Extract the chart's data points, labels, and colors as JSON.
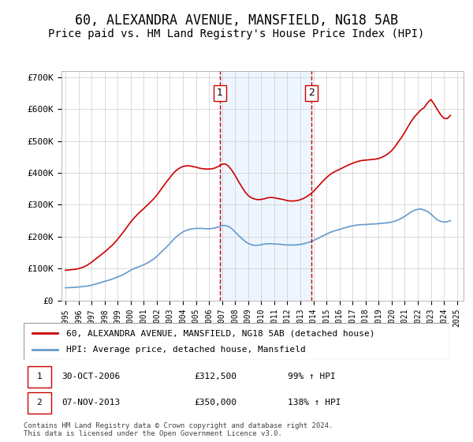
{
  "title": "60, ALEXANDRA AVENUE, MANSFIELD, NG18 5AB",
  "subtitle": "Price paid vs. HM Land Registry's House Price Index (HPI)",
  "title_fontsize": 12,
  "subtitle_fontsize": 10,
  "ylabel_ticks": [
    "£0",
    "£100K",
    "£200K",
    "£300K",
    "£400K",
    "£500K",
    "£600K",
    "£700K"
  ],
  "ytick_values": [
    0,
    100000,
    200000,
    300000,
    400000,
    500000,
    600000,
    700000
  ],
  "ylim": [
    0,
    720000
  ],
  "xlim_start": 1995.0,
  "xlim_end": 2025.5,
  "xtick_years": [
    1995,
    1996,
    1997,
    1998,
    1999,
    2000,
    2001,
    2002,
    2003,
    2004,
    2005,
    2006,
    2007,
    2008,
    2009,
    2010,
    2011,
    2012,
    2013,
    2014,
    2015,
    2016,
    2017,
    2018,
    2019,
    2020,
    2021,
    2022,
    2023,
    2024,
    2025
  ],
  "red_line_color": "#cc0000",
  "blue_line_color": "#6699cc",
  "vline_color": "#cc0000",
  "vline1_x": 2006.83,
  "vline2_x": 2013.85,
  "shade_color": "#ddeeff",
  "transaction1": {
    "label": "1",
    "date": "30-OCT-2006",
    "price": "£312,500",
    "hpi": "99% ↑ HPI"
  },
  "transaction2": {
    "label": "2",
    "date": "07-NOV-2013",
    "price": "£350,000",
    "hpi": "138% ↑ HPI"
  },
  "legend_line1": "60, ALEXANDRA AVENUE, MANSFIELD, NG18 5AB (detached house)",
  "legend_line2": "HPI: Average price, detached house, Mansfield",
  "footnote": "Contains HM Land Registry data © Crown copyright and database right 2024.\nThis data is licensed under the Open Government Licence v3.0.",
  "hpi_years": [
    1995.0,
    1995.25,
    1995.5,
    1995.75,
    1996.0,
    1996.25,
    1996.5,
    1996.75,
    1997.0,
    1997.25,
    1997.5,
    1997.75,
    1998.0,
    1998.25,
    1998.5,
    1998.75,
    1999.0,
    1999.25,
    1999.5,
    1999.75,
    2000.0,
    2000.25,
    2000.5,
    2000.75,
    2001.0,
    2001.25,
    2001.5,
    2001.75,
    2002.0,
    2002.25,
    2002.5,
    2002.75,
    2003.0,
    2003.25,
    2003.5,
    2003.75,
    2004.0,
    2004.25,
    2004.5,
    2004.75,
    2005.0,
    2005.25,
    2005.5,
    2005.75,
    2006.0,
    2006.25,
    2006.5,
    2006.75,
    2007.0,
    2007.25,
    2007.5,
    2007.75,
    2008.0,
    2008.25,
    2008.5,
    2008.75,
    2009.0,
    2009.25,
    2009.5,
    2009.75,
    2010.0,
    2010.25,
    2010.5,
    2010.75,
    2011.0,
    2011.25,
    2011.5,
    2011.75,
    2012.0,
    2012.25,
    2012.5,
    2012.75,
    2013.0,
    2013.25,
    2013.5,
    2013.75,
    2014.0,
    2014.25,
    2014.5,
    2014.75,
    2015.0,
    2015.25,
    2015.5,
    2015.75,
    2016.0,
    2016.25,
    2016.5,
    2016.75,
    2017.0,
    2017.25,
    2017.5,
    2017.75,
    2018.0,
    2018.25,
    2018.5,
    2018.75,
    2019.0,
    2019.25,
    2019.5,
    2019.75,
    2020.0,
    2020.25,
    2020.5,
    2020.75,
    2021.0,
    2021.25,
    2021.5,
    2021.75,
    2022.0,
    2022.25,
    2022.5,
    2022.75,
    2023.0,
    2023.25,
    2023.5,
    2023.75,
    2024.0,
    2024.25,
    2024.5
  ],
  "hpi_values": [
    40000,
    40500,
    41000,
    41500,
    42500,
    43500,
    44500,
    46000,
    48000,
    51000,
    54000,
    57000,
    60000,
    63000,
    66000,
    70000,
    74000,
    78000,
    83000,
    89000,
    95000,
    100000,
    104000,
    108000,
    112000,
    117000,
    123000,
    130000,
    138000,
    148000,
    158000,
    168000,
    178000,
    190000,
    200000,
    208000,
    215000,
    220000,
    223000,
    225000,
    226000,
    226000,
    226000,
    225000,
    225000,
    226000,
    228000,
    231000,
    235000,
    235000,
    232000,
    225000,
    215000,
    205000,
    195000,
    186000,
    179000,
    175000,
    173000,
    173000,
    175000,
    177000,
    178000,
    178000,
    177000,
    177000,
    176000,
    175000,
    174000,
    174000,
    174000,
    175000,
    176000,
    178000,
    181000,
    184000,
    188000,
    193000,
    198000,
    203000,
    208000,
    213000,
    217000,
    220000,
    223000,
    226000,
    229000,
    232000,
    234000,
    236000,
    237000,
    238000,
    238000,
    239000,
    240000,
    240000,
    241000,
    242000,
    243000,
    244000,
    246000,
    249000,
    253000,
    258000,
    264000,
    271000,
    278000,
    283000,
    286000,
    287000,
    283000,
    279000,
    271000,
    261000,
    253000,
    248000,
    246000,
    247000,
    250000
  ],
  "red_years": [
    1995.0,
    1995.25,
    1995.5,
    1995.75,
    1996.0,
    1996.25,
    1996.5,
    1996.75,
    1997.0,
    1997.25,
    1997.5,
    1997.75,
    1998.0,
    1998.25,
    1998.5,
    1998.75,
    1999.0,
    1999.25,
    1999.5,
    1999.75,
    2000.0,
    2000.25,
    2000.5,
    2000.75,
    2001.0,
    2001.25,
    2001.5,
    2001.75,
    2002.0,
    2002.25,
    2002.5,
    2002.75,
    2003.0,
    2003.25,
    2003.5,
    2003.75,
    2004.0,
    2004.25,
    2004.5,
    2004.75,
    2005.0,
    2005.25,
    2005.5,
    2005.75,
    2006.0,
    2006.25,
    2006.5,
    2006.75,
    2007.0,
    2007.25,
    2007.5,
    2007.75,
    2008.0,
    2008.25,
    2008.5,
    2008.75,
    2009.0,
    2009.25,
    2009.5,
    2009.75,
    2010.0,
    2010.25,
    2010.5,
    2010.75,
    2011.0,
    2011.25,
    2011.5,
    2011.75,
    2012.0,
    2012.25,
    2012.5,
    2012.75,
    2013.0,
    2013.25,
    2013.5,
    2013.75,
    2014.0,
    2014.25,
    2014.5,
    2014.75,
    2015.0,
    2015.25,
    2015.5,
    2015.75,
    2016.0,
    2016.25,
    2016.5,
    2016.75,
    2017.0,
    2017.25,
    2017.5,
    2017.75,
    2018.0,
    2018.25,
    2018.5,
    2018.75,
    2019.0,
    2019.25,
    2019.5,
    2019.75,
    2020.0,
    2020.25,
    2020.5,
    2020.75,
    2021.0,
    2021.25,
    2021.5,
    2021.75,
    2022.0,
    2022.25,
    2022.5,
    2022.75,
    2023.0,
    2023.25,
    2023.5,
    2023.75,
    2024.0,
    2024.25,
    2024.5
  ],
  "red_values": [
    95000,
    96000,
    97000,
    98000,
    100000,
    103000,
    107000,
    113000,
    120000,
    128000,
    136000,
    144000,
    152000,
    161000,
    170000,
    180000,
    192000,
    205000,
    218000,
    232000,
    246000,
    258000,
    269000,
    279000,
    288000,
    298000,
    308000,
    318000,
    330000,
    344000,
    358000,
    372000,
    385000,
    398000,
    408000,
    415000,
    420000,
    422000,
    422000,
    420000,
    418000,
    415000,
    413000,
    412000,
    412000,
    413000,
    416000,
    421000,
    427000,
    428000,
    421000,
    408000,
    392000,
    374000,
    357000,
    341000,
    329000,
    322000,
    318000,
    316000,
    317000,
    319000,
    322000,
    323000,
    322000,
    320000,
    318000,
    316000,
    313000,
    312000,
    312000,
    313000,
    316000,
    320000,
    326000,
    333000,
    342000,
    353000,
    364000,
    375000,
    385000,
    394000,
    401000,
    406000,
    411000,
    416000,
    421000,
    426000,
    430000,
    434000,
    437000,
    439000,
    440000,
    441000,
    442000,
    443000,
    445000,
    449000,
    454000,
    461000,
    470000,
    482000,
    497000,
    511000,
    527000,
    545000,
    562000,
    576000,
    587000,
    598000,
    605000,
    620000,
    630000,
    615000,
    598000,
    582000,
    571000,
    570000,
    580000
  ]
}
